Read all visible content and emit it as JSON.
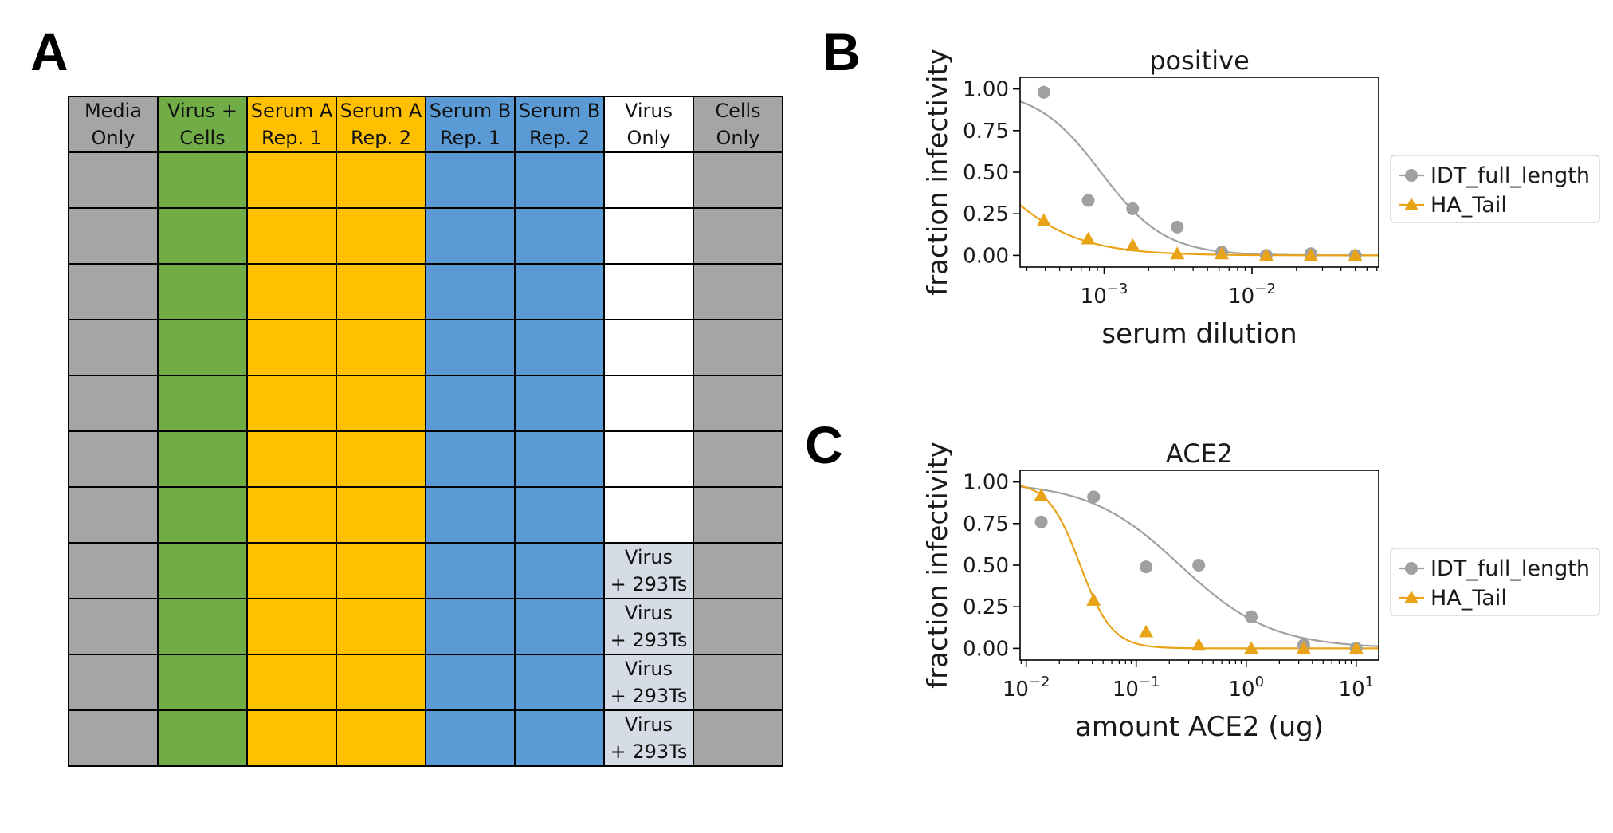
{
  "panels": {
    "a": "A",
    "b": "B",
    "c": "C"
  },
  "plate": {
    "columns": [
      {
        "line1": "Media",
        "line2": "Only",
        "color": "#a5a5a5"
      },
      {
        "line1": "Virus +",
        "line2": "Cells",
        "color": "#70ad47"
      },
      {
        "line1": "Serum A",
        "line2": "Rep. 1",
        "color": "#ffc000"
      },
      {
        "line1": "Serum A",
        "line2": "Rep. 2",
        "color": "#ffc000"
      },
      {
        "line1": "Serum B",
        "line2": "Rep. 1",
        "color": "#5b9bd5"
      },
      {
        "line1": "Serum B",
        "line2": "Rep. 2",
        "color": "#5b9bd5"
      },
      {
        "line1": "Virus",
        "line2": "Only",
        "color": "#ffffff"
      },
      {
        "line1": "Cells",
        "line2": "Only",
        "color": "#a5a5a5"
      }
    ],
    "rows": 11,
    "special_cell": {
      "line1": "Virus",
      "line2": "+ 293Ts",
      "color": "#d6dce5",
      "column": 6,
      "first_row": 7
    }
  },
  "chart_data": [
    {
      "type": "scatter",
      "title": "positive",
      "xlabel": "serum dilution",
      "ylabel": "fraction infectivity",
      "xscale": "log",
      "xlim": [
        0.00027,
        0.072
      ],
      "ylim": [
        -0.07,
        1.07
      ],
      "yticks": [
        "0.00",
        "0.25",
        "0.50",
        "0.75",
        "1.00"
      ],
      "ytick_values": [
        0,
        0.25,
        0.5,
        0.75,
        1.0
      ],
      "xticks": [
        {
          "value": 0.001,
          "label": "10",
          "exp": "−3"
        },
        {
          "value": 0.01,
          "label": "10",
          "exp": "−2"
        }
      ],
      "legend_placement": "right",
      "series": [
        {
          "name": "IDT_full_length",
          "color": "#a0a0a0",
          "marker": "circle",
          "x": [
            0.000391,
            0.000781,
            0.00156,
            0.003125,
            0.00625,
            0.0125,
            0.025,
            0.05
          ],
          "y": [
            0.98,
            0.33,
            0.28,
            0.17,
            0.02,
            0.0,
            0.01,
            0.0
          ],
          "fit": {
            "ic50": 0.00095,
            "hill": 2.0,
            "top": 1.0,
            "bottom": 0.0
          }
        },
        {
          "name": "HA_Tail",
          "color": "#e8a317",
          "marker": "triangle",
          "x": [
            0.000391,
            0.000781,
            0.00156,
            0.003125,
            0.00625,
            0.0125,
            0.025,
            0.05
          ],
          "y": [
            0.21,
            0.1,
            0.06,
            0.01,
            0.01,
            0.0,
            0.0,
            0.0
          ],
          "fit": {
            "ic50": 0.000155,
            "hill": 1.5,
            "top": 1.0,
            "bottom": 0.0
          }
        }
      ]
    },
    {
      "type": "scatter",
      "title": "ACE2",
      "xlabel": "amount ACE2 (ug)",
      "ylabel": "fraction infectivity",
      "xscale": "log",
      "xlim": [
        0.0088,
        16
      ],
      "ylim": [
        -0.07,
        1.07
      ],
      "yticks": [
        "0.00",
        "0.25",
        "0.50",
        "0.75",
        "1.00"
      ],
      "ytick_values": [
        0,
        0.25,
        0.5,
        0.75,
        1.0
      ],
      "xticks": [
        {
          "value": 0.01,
          "label": "10",
          "exp": "−2"
        },
        {
          "value": 0.1,
          "label": "10",
          "exp": "−1"
        },
        {
          "value": 1,
          "label": "10",
          "exp": "0"
        },
        {
          "value": 10,
          "label": "10",
          "exp": "1"
        }
      ],
      "legend_placement": "right",
      "series": [
        {
          "name": "IDT_full_length",
          "color": "#a0a0a0",
          "marker": "circle",
          "x": [
            0.0137,
            0.041,
            0.123,
            0.37,
            1.11,
            3.33,
            10
          ],
          "y": [
            0.76,
            0.91,
            0.49,
            0.5,
            0.19,
            0.02,
            0.0
          ],
          "fit": {
            "ic50": 0.25,
            "hill": 1.05,
            "top": 1.0,
            "bottom": 0.0
          }
        },
        {
          "name": "HA_Tail",
          "color": "#e8a317",
          "marker": "triangle",
          "x": [
            0.0137,
            0.041,
            0.123,
            0.37,
            1.11,
            3.33,
            10
          ],
          "y": [
            0.92,
            0.29,
            0.1,
            0.02,
            0.0,
            0.0,
            0.0
          ],
          "fit": {
            "ic50": 0.031,
            "hill": 3.0,
            "top": 1.0,
            "bottom": 0.0
          }
        }
      ]
    }
  ]
}
